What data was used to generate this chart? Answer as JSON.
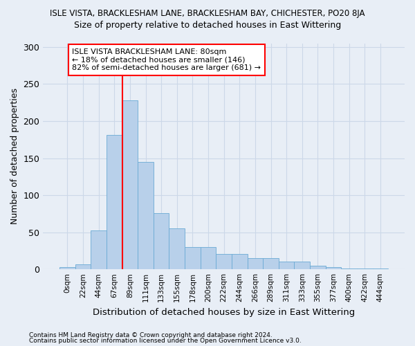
{
  "title": "ISLE VISTA, BRACKLESHAM LANE, BRACKLESHAM BAY, CHICHESTER, PO20 8JA",
  "subtitle": "Size of property relative to detached houses in East Wittering",
  "xlabel": "Distribution of detached houses by size in East Wittering",
  "ylabel": "Number of detached properties",
  "footnote1": "Contains HM Land Registry data © Crown copyright and database right 2024.",
  "footnote2": "Contains public sector information licensed under the Open Government Licence v3.0.",
  "bar_labels": [
    "0sqm",
    "22sqm",
    "44sqm",
    "67sqm",
    "89sqm",
    "111sqm",
    "133sqm",
    "155sqm",
    "178sqm",
    "200sqm",
    "222sqm",
    "244sqm",
    "266sqm",
    "289sqm",
    "311sqm",
    "333sqm",
    "355sqm",
    "377sqm",
    "400sqm",
    "422sqm",
    "444sqm"
  ],
  "bar_values": [
    3,
    7,
    52,
    181,
    228,
    145,
    76,
    55,
    30,
    30,
    21,
    21,
    15,
    15,
    10,
    10,
    5,
    3,
    1,
    1,
    1
  ],
  "bar_color": "#b8d0ea",
  "bar_edge_color": "#6aaad4",
  "vline_x_idx": 4,
  "vline_color": "red",
  "annotation_text": "ISLE VISTA BRACKLESHAM LANE: 80sqm\n← 18% of detached houses are smaller (146)\n82% of semi-detached houses are larger (681) →",
  "annotation_box_color": "white",
  "annotation_box_edge_color": "red",
  "ylim": [
    0,
    305
  ],
  "yticks": [
    0,
    50,
    100,
    150,
    200,
    250,
    300
  ],
  "grid_color": "#ccd8e8",
  "bg_color": "#e8eef6"
}
